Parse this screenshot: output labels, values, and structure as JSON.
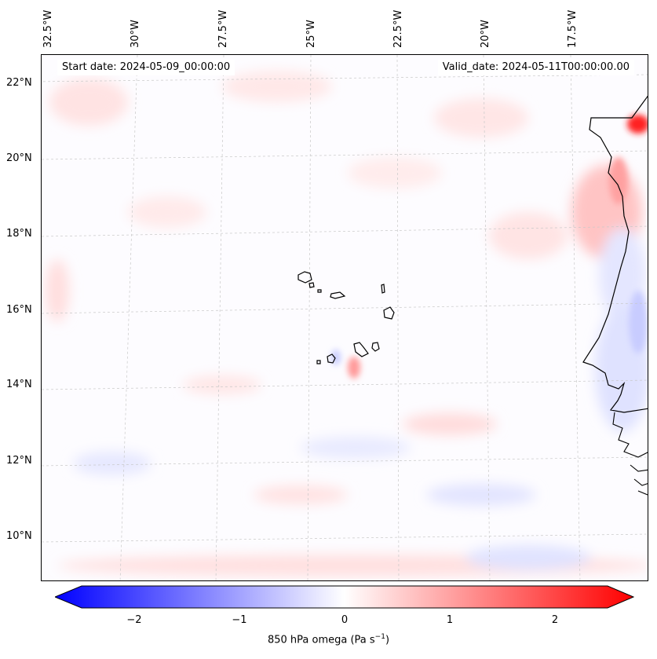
{
  "map": {
    "lon_labels": [
      "32.5°W",
      "30°W",
      "27.5°W",
      "25°W",
      "22.5°W",
      "20°W",
      "17.5°W"
    ],
    "lat_labels": [
      "22°N",
      "20°N",
      "18°N",
      "16°N",
      "14°N",
      "12°N",
      "10°N"
    ],
    "start_date": "Start date: 2024-05-09_00:00:00",
    "valid_date": "Valid_date: 2024-05-11T00:00:00.00",
    "field": "850 hPa omega"
  },
  "colorbar": {
    "ticks": [
      "−2",
      "−1",
      "0",
      "1",
      "2"
    ],
    "label_main": "850 hPa omega (Pa s",
    "label_exp": "−1",
    "label_close": ")",
    "low_color": "#0000ff",
    "mid_color": "#ffffff",
    "high_color": "#ff0000"
  }
}
